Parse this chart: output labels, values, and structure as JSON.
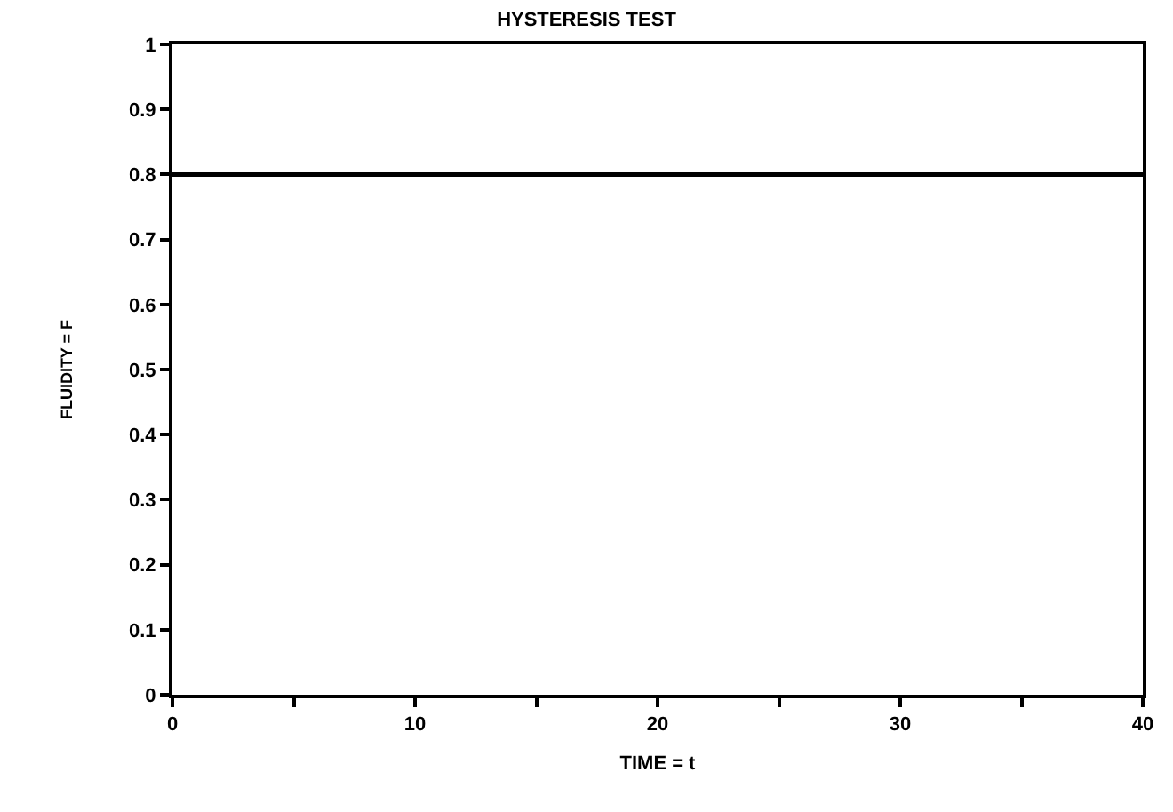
{
  "chart_data": {
    "type": "line",
    "title": "HYSTERESIS TEST",
    "xlabel": "TIME = t",
    "ylabel": "FLUIDITY = F",
    "x": [
      0,
      40
    ],
    "series": [
      {
        "color": "#000000",
        "values": [
          0.8,
          0.8
        ]
      }
    ],
    "xlim": [
      0,
      40
    ],
    "ylim": [
      0,
      1
    ],
    "xticks": [
      0,
      {
        "value": 5,
        "label": null
      },
      10,
      {
        "value": 15,
        "label": null
      },
      20,
      {
        "value": 25,
        "label": null
      },
      30,
      {
        "value": 35,
        "label": null
      },
      40
    ],
    "yticks": [
      0,
      0.1,
      0.2,
      0.3,
      0.4,
      0.5,
      0.6,
      0.7,
      0.8,
      0.9,
      1
    ],
    "grid": false,
    "marker": "none",
    "line_style": "solid"
  }
}
